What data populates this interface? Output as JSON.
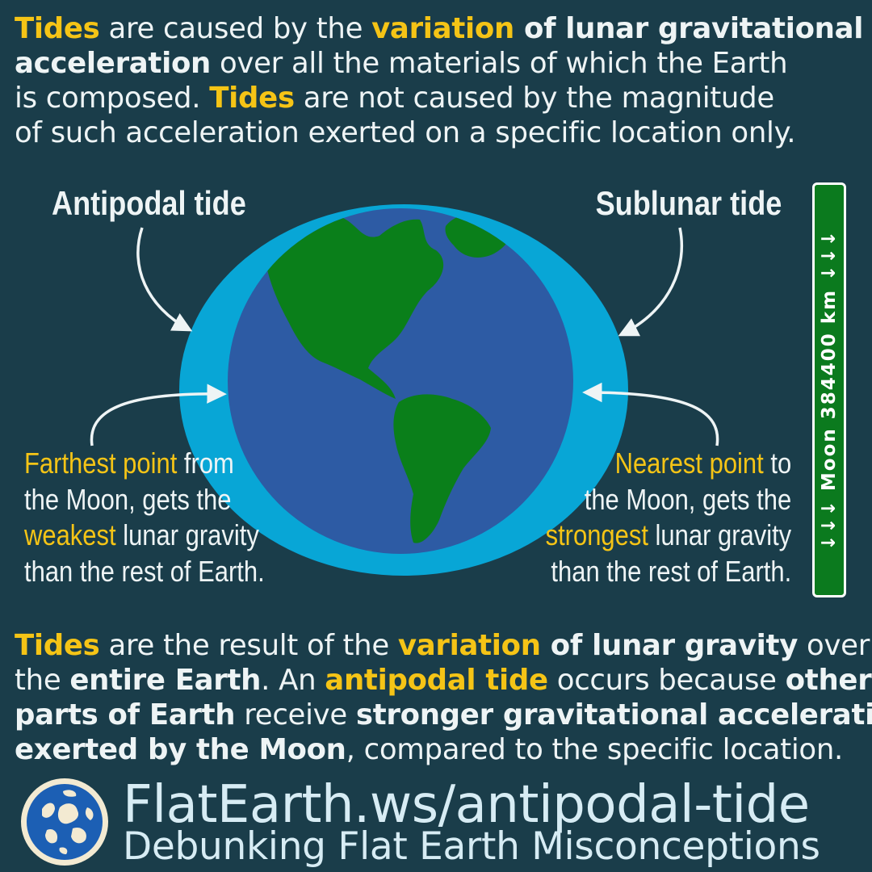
{
  "intro": {
    "s1": "Tides",
    "s2": " are caused by the ",
    "s3": "variation",
    "s4": " of lunar gravitational",
    "s5": "acceleration",
    "s6": " over all the materials of which the Earth",
    "s7": "is composed. ",
    "s8": "Tides",
    "s9": " are not caused by the magnitude",
    "s10": "of such acceleration exerted on a specific location only."
  },
  "antipodal_label": "Antipodal tide",
  "sublunar_label": "Sublunar tide",
  "farthest": {
    "s1": "Farthest point",
    "s2": " from",
    "s3": "the Moon, gets the",
    "s4": "weakest",
    "s5": " lunar gravity",
    "s6": "than the rest of Earth."
  },
  "nearest": {
    "s1": "Nearest point",
    "s2": " to",
    "s3": "the Moon, gets the",
    "s4": "strongest",
    "s5": " lunar gravity",
    "s6": "than the rest of Earth."
  },
  "moon_sign": "↓↓↓ Moon 384400 km ↓↓↓",
  "outro": {
    "s1": "Tides",
    "s2": " are the result of the ",
    "s3": "variation",
    "s4": " of lunar gravity",
    "s5": " over",
    "s6": "the ",
    "s7": "entire Earth",
    "s8": ". An ",
    "s9": "antipodal tide",
    "s10": " occurs because ",
    "s11": "other",
    "s12": "parts of Earth",
    "s13": " receive ",
    "s14": "stronger gravitational acceleration",
    "s15": "exerted by the Moon",
    "s16": ", compared to the specific location."
  },
  "footer": {
    "url": "FlatEarth.ws/antipodal-tide",
    "tagline": "Debunking Flat Earth Misconceptions"
  },
  "colors": {
    "background": "#1a3d4a",
    "highlight": "#f5c416",
    "tidal_bulge": "#08a6d6",
    "ocean": "#2d5ba4",
    "land": "#0a7f1a",
    "sign_green": "#0b7a1e"
  }
}
